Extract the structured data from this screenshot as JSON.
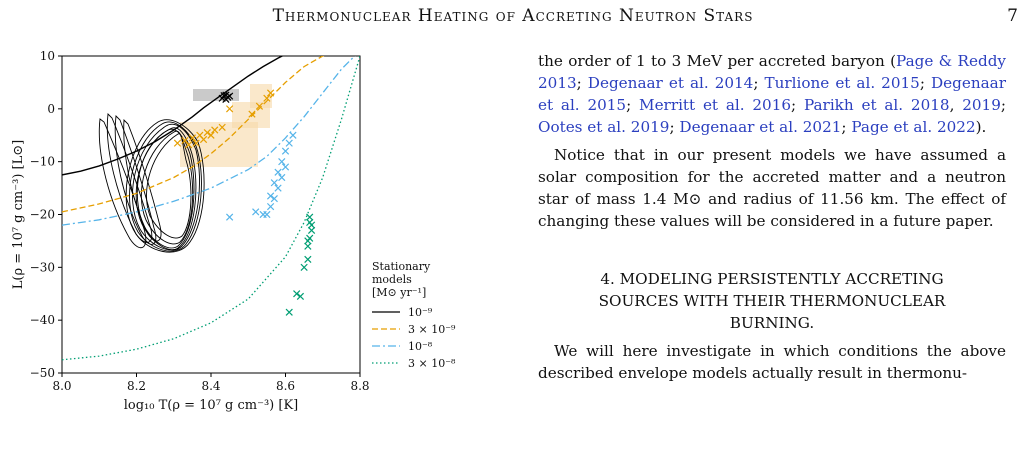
{
  "header": {
    "running_title": "Thermonuclear Heating of Accreting Neutron Stars",
    "page_number": "7"
  },
  "chart_data": {
    "type": "line",
    "xlabel": "log₁₀ T(ρ = 10⁷ g cm⁻³) [K]",
    "ylabel": "L(ρ = 10⁷ g cm⁻³) [L⊙]",
    "xlim": [
      8.0,
      8.8
    ],
    "ylim": [
      -50,
      10
    ],
    "x_ticks": [
      "8.0",
      "8.2",
      "8.4",
      "8.6",
      "8.8"
    ],
    "y_ticks": [
      "−50",
      "−40",
      "−30",
      "−20",
      "−10",
      "0",
      "10"
    ],
    "legend_title": [
      "Stationary",
      "models",
      "[M⊙ yr⁻¹]"
    ],
    "legend_position": "right-outside",
    "series": [
      {
        "name": "10⁻⁹",
        "color": "#000000",
        "style": "solid",
        "x": [
          8.0,
          8.05,
          8.1,
          8.15,
          8.2,
          8.25,
          8.3,
          8.35,
          8.38,
          8.42,
          8.46,
          8.5,
          8.54,
          8.58,
          8.62
        ],
        "y": [
          -12.5,
          -11.8,
          -10.8,
          -9.5,
          -8.0,
          -6.2,
          -4.0,
          -1.5,
          0.2,
          2.2,
          4.2,
          6.2,
          8.0,
          9.6,
          11.0
        ]
      },
      {
        "name": "3 × 10⁻⁹",
        "color": "#e69f00",
        "style": "dashed",
        "x": [
          8.0,
          8.1,
          8.2,
          8.3,
          8.35,
          8.4,
          8.45,
          8.5,
          8.55,
          8.6,
          8.65,
          8.7,
          8.74
        ],
        "y": [
          -19.5,
          -18.0,
          -16.0,
          -13.0,
          -11.0,
          -8.5,
          -5.5,
          -2.0,
          1.5,
          5.0,
          8.0,
          10.0,
          11.0
        ]
      },
      {
        "name": "10⁻⁸",
        "color": "#56b4e9",
        "style": "dashdot",
        "x": [
          8.0,
          8.1,
          8.2,
          8.3,
          8.4,
          8.5,
          8.55,
          8.6,
          8.65,
          8.7,
          8.75,
          8.8
        ],
        "y": [
          -22.0,
          -21.0,
          -19.5,
          -17.5,
          -15.0,
          -11.5,
          -9.0,
          -5.5,
          -1.5,
          3.0,
          7.5,
          11.0
        ]
      },
      {
        "name": "3 × 10⁻⁸",
        "color": "#009e73",
        "style": "dotted",
        "x": [
          8.0,
          8.1,
          8.2,
          8.3,
          8.4,
          8.5,
          8.6,
          8.65,
          8.7,
          8.75,
          8.8
        ],
        "y": [
          -47.5,
          -46.8,
          -45.5,
          -43.5,
          -40.5,
          -36.0,
          -28.0,
          -21.5,
          -13.0,
          -2.0,
          10.0
        ]
      }
    ],
    "markers": {
      "black": {
        "color": "#000000",
        "x": [
          8.43,
          8.44,
          8.445,
          8.45,
          8.44,
          8.435
        ],
        "y": [
          2.0,
          2.6,
          2.2,
          2.4,
          1.8,
          2.5
        ]
      },
      "orange": {
        "color": "#e69f00",
        "x": [
          8.31,
          8.33,
          8.35,
          8.37,
          8.39,
          8.41,
          8.36,
          8.38,
          8.4,
          8.34,
          8.43,
          8.45,
          8.51,
          8.53,
          8.55,
          8.56
        ],
        "y": [
          -6.5,
          -6.0,
          -5.5,
          -5.0,
          -4.5,
          -4.0,
          -6.5,
          -5.8,
          -5.0,
          -6.8,
          -3.5,
          0.0,
          -1.0,
          0.5,
          2.0,
          3.0
        ]
      },
      "blue": {
        "color": "#56b4e9",
        "x": [
          8.55,
          8.56,
          8.57,
          8.58,
          8.59,
          8.6,
          8.57,
          8.58,
          8.59,
          8.56,
          8.6,
          8.61,
          8.62,
          8.45,
          8.52,
          8.54
        ],
        "y": [
          -20.0,
          -18.5,
          -17.0,
          -15.0,
          -13.0,
          -11.0,
          -14.0,
          -12.0,
          -10.0,
          -16.5,
          -8.0,
          -6.5,
          -5.0,
          -20.5,
          -19.5,
          -20.0
        ]
      },
      "green": {
        "color": "#009e73",
        "x": [
          8.61,
          8.63,
          8.64,
          8.65,
          8.66,
          8.66,
          8.665,
          8.67,
          8.665,
          8.66,
          8.67,
          8.665
        ],
        "y": [
          -38.5,
          -35.0,
          -35.5,
          -30.0,
          -28.5,
          -26.0,
          -24.5,
          -23.0,
          -21.5,
          -25.0,
          -22.0,
          -20.5
        ]
      }
    }
  },
  "body": {
    "para1_parts": [
      {
        "t": "the order of 1 to 3 MeV per accreted baryon (",
        "cite": false
      },
      {
        "t": "Page & Reddy 2013",
        "cite": true
      },
      {
        "t": "; ",
        "cite": false
      },
      {
        "t": "Degenaar et al. 2014",
        "cite": true
      },
      {
        "t": "; ",
        "cite": false
      },
      {
        "t": "Turlione et al. 2015",
        "cite": true
      },
      {
        "t": "; ",
        "cite": false
      },
      {
        "t": "Degenaar et al. 2015",
        "cite": true
      },
      {
        "t": "; ",
        "cite": false
      },
      {
        "t": "Merritt et al. 2016",
        "cite": true
      },
      {
        "t": "; ",
        "cite": false
      },
      {
        "t": "Parikh et al. 2018",
        "cite": true
      },
      {
        "t": ", ",
        "cite": false
      },
      {
        "t": "2019",
        "cite": true
      },
      {
        "t": "; ",
        "cite": false
      },
      {
        "t": "Ootes et al. 2019",
        "cite": true
      },
      {
        "t": "; ",
        "cite": false
      },
      {
        "t": "Degenaar et al. 2021",
        "cite": true
      },
      {
        "t": "; ",
        "cite": false
      },
      {
        "t": "Page et al. 2022",
        "cite": true
      },
      {
        "t": ").",
        "cite": false
      }
    ],
    "para2": "Notice that in our present models we have assumed a solar composition for the accreted matter and a neutron star of mass 1.4 M⊙ and radius of 11.56 km. The effect of changing these values will be considered in a future paper.",
    "section_heading_line1": "4. MODELING PERSISTENTLY ACCRETING",
    "section_heading_line2": "SOURCES WITH THEIR THERMONUCLEAR",
    "section_heading_line3": "BURNING.",
    "para3": "We will here investigate in which conditions the above described envelope models actually result in thermonu-"
  }
}
